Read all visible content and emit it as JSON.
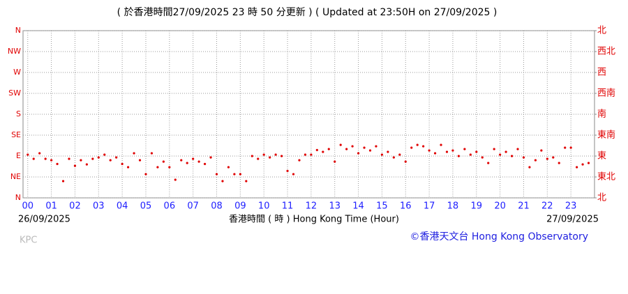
{
  "chart_data": {
    "type": "scatter",
    "title": "( 於香港時間27/09/2025 23 時 50 分更新 ) ( Updated at 23:50H on 27/09/2025 )",
    "x_label": "香港時間 ( 時 ) Hong Kong Time (Hour)",
    "start_date": "26/09/2025",
    "end_date": "27/09/2025",
    "station": "KPC",
    "credit": "©香港天文台 Hong Kong Observatory",
    "color": "#e00000",
    "grid": true,
    "xlim": [
      -0.2,
      24
    ],
    "ylim": [
      0,
      360
    ],
    "y2lim": [
      0,
      360
    ],
    "xticks": [
      {
        "value": 0,
        "label": "00"
      },
      {
        "value": 1,
        "label": "01"
      },
      {
        "value": 2,
        "label": "02"
      },
      {
        "value": 3,
        "label": "03"
      },
      {
        "value": 4,
        "label": "04"
      },
      {
        "value": 5,
        "label": "05"
      },
      {
        "value": 6,
        "label": "06"
      },
      {
        "value": 7,
        "label": "07"
      },
      {
        "value": 8,
        "label": "08"
      },
      {
        "value": 9,
        "label": "09"
      },
      10,
      11,
      12,
      13,
      14,
      15,
      16,
      17,
      18,
      19,
      20,
      21,
      22,
      23
    ],
    "yticks": [
      {
        "value": 0,
        "label": "N"
      },
      {
        "value": 45,
        "label": "NE"
      },
      {
        "value": 90,
        "label": "E"
      },
      {
        "value": 135,
        "label": "SE"
      },
      {
        "value": 180,
        "label": "S"
      },
      {
        "value": 225,
        "label": "SW"
      },
      {
        "value": 270,
        "label": "W"
      },
      {
        "value": 315,
        "label": "NW"
      },
      {
        "value": 360,
        "label": "N"
      }
    ],
    "y2ticks": [
      {
        "value": 0,
        "label": "北"
      },
      {
        "value": 45,
        "label": "東北"
      },
      {
        "value": 90,
        "label": "東"
      },
      {
        "value": 135,
        "label": "東南"
      },
      {
        "value": 180,
        "label": "南"
      },
      {
        "value": 225,
        "label": "西南"
      },
      {
        "value": 270,
        "label": "西"
      },
      {
        "value": 315,
        "label": "西北"
      },
      {
        "value": 360,
        "label": "北"
      }
    ],
    "x": [
      0,
      0.25,
      0.5,
      0.75,
      1,
      1.25,
      1.5,
      1.75,
      2,
      2.25,
      2.5,
      2.75,
      3,
      3.25,
      3.5,
      3.75,
      4,
      4.25,
      4.5,
      4.75,
      5,
      5.25,
      5.5,
      5.75,
      6,
      6.25,
      6.5,
      6.75,
      7,
      7.25,
      7.5,
      7.75,
      8,
      8.25,
      8.5,
      8.75,
      9,
      9.25,
      9.5,
      9.75,
      10,
      10.25,
      10.5,
      10.75,
      11,
      11.25,
      11.5,
      11.75,
      12,
      12.25,
      12.5,
      12.75,
      13,
      13.25,
      13.5,
      13.75,
      14,
      14.25,
      14.5,
      14.75,
      15,
      15.25,
      15.5,
      15.75,
      16,
      16.25,
      16.5,
      16.75,
      17,
      17.25,
      17.5,
      17.75,
      18,
      18.25,
      18.5,
      18.75,
      19,
      19.25,
      19.5,
      19.75,
      20,
      20.25,
      20.5,
      20.75,
      21,
      21.25,
      21.5,
      21.75,
      22,
      22.25,
      22.5,
      22.75,
      23,
      23.25,
      23.5,
      23.75
    ],
    "values": [
      93,
      84,
      96,
      84,
      81,
      73,
      36,
      84,
      69,
      81,
      72,
      84,
      87,
      93,
      81,
      87,
      73,
      66,
      96,
      81,
      51,
      96,
      66,
      78,
      66,
      39,
      81,
      75,
      84,
      78,
      73,
      87,
      51,
      36,
      66,
      51,
      51,
      36,
      90,
      84,
      93,
      87,
      93,
      90,
      58,
      51,
      81,
      93,
      93,
      103,
      99,
      105,
      78,
      114,
      105,
      111,
      96,
      108,
      102,
      111,
      93,
      99,
      87,
      93,
      78,
      108,
      114,
      111,
      102,
      96,
      114,
      99,
      102,
      90,
      105,
      93,
      99,
      87,
      75,
      105,
      93,
      99,
      90,
      105,
      87,
      66,
      81,
      102,
      84,
      87,
      75,
      108,
      108,
      66,
      72,
      75
    ]
  }
}
